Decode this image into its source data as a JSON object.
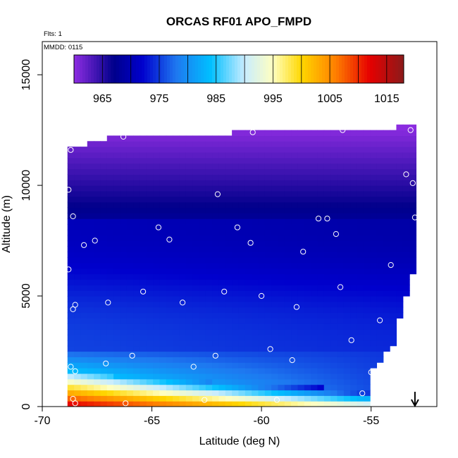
{
  "chart_data": {
    "type": "heatmap",
    "title": "ORCAS RF01 APO_FMPD",
    "subtitle_flights": "Flts: 1",
    "subtitle_date": "MMDD: 0115",
    "xlabel": "Latitude (deg N)",
    "ylabel": "Altitude (m)",
    "xlim": [
      -70,
      -52
    ],
    "ylim": [
      0,
      16500
    ],
    "x_ticks": [
      -70,
      -65,
      -60,
      -55
    ],
    "x_tick_labels": [
      "-70",
      "-65",
      "-60",
      "-55"
    ],
    "y_ticks": [
      0,
      5000,
      10000,
      15000
    ],
    "y_tick_labels": [
      "0",
      "5000",
      "10000",
      "15000"
    ],
    "colorbar": {
      "range": [
        960,
        1018
      ],
      "ticks": [
        965,
        975,
        985,
        995,
        1005,
        1015
      ],
      "tick_labels": [
        "965",
        "975",
        "985",
        "995",
        "1005",
        "1015"
      ],
      "breaks": [
        965,
        970,
        975,
        980,
        985,
        990,
        995,
        1000,
        1005,
        1010,
        1015
      ],
      "colors": [
        "#8e2de2",
        "#00008b",
        "#0000cd",
        "#1e78f0",
        "#00bfff",
        "#c8ecff",
        "#ffffc0",
        "#ffd700",
        "#ff7f00",
        "#e60000",
        "#8b1a1a"
      ],
      "color_values": [
        960,
        967,
        972,
        978,
        984,
        990,
        995,
        1000,
        1006,
        1012,
        1018
      ]
    },
    "field": {
      "lat_start": -68.85,
      "lat_end": -53.0,
      "top_altitude": [
        [
          -68.85,
          11600
        ],
        [
          -67.0,
          12150
        ],
        [
          -66.0,
          12200
        ],
        [
          -65.0,
          12200
        ],
        [
          -60.0,
          12450
        ],
        [
          -55.0,
          12500
        ],
        [
          -53.3,
          12700
        ],
        [
          -53.0,
          12700
        ]
      ],
      "bottom_profile": [
        [
          -68.85,
          0
        ],
        [
          -55.2,
          0
        ],
        [
          -55.0,
          1500
        ],
        [
          -54.0,
          2800
        ],
        [
          -53.0,
          6400
        ]
      ],
      "surface_layer_top": [
        [
          -68.85,
          1500
        ],
        [
          -60.0,
          1000
        ],
        [
          -55.5,
          800
        ]
      ]
    },
    "observations": [
      [
        -68.7,
        11600
      ],
      [
        -66.3,
        12200
      ],
      [
        -60.4,
        12400
      ],
      [
        -56.3,
        12500
      ],
      [
        -53.2,
        12500
      ],
      [
        -68.8,
        9800
      ],
      [
        -62.0,
        9600
      ],
      [
        -53.4,
        10500
      ],
      [
        -53.1,
        10100
      ],
      [
        -68.6,
        8600
      ],
      [
        -64.7,
        8100
      ],
      [
        -61.1,
        8100
      ],
      [
        -57.4,
        8500
      ],
      [
        -57.0,
        8500
      ],
      [
        -53.0,
        8550
      ],
      [
        -52.8,
        8550
      ],
      [
        -68.1,
        7300
      ],
      [
        -67.6,
        7500
      ],
      [
        -64.2,
        7550
      ],
      [
        -60.5,
        7400
      ],
      [
        -56.6,
        7800
      ],
      [
        -58.1,
        7000
      ],
      [
        -68.8,
        6200
      ],
      [
        -54.1,
        6400
      ],
      [
        -65.4,
        5200
      ],
      [
        -61.7,
        5200
      ],
      [
        -60.0,
        5000
      ],
      [
        -56.4,
        5400
      ],
      [
        -68.5,
        4600
      ],
      [
        -68.6,
        4400
      ],
      [
        -67.0,
        4700
      ],
      [
        -63.6,
        4700
      ],
      [
        -58.4,
        4500
      ],
      [
        -54.6,
        3900
      ],
      [
        -55.9,
        3000
      ],
      [
        -59.6,
        2600
      ],
      [
        -68.7,
        1800
      ],
      [
        -68.5,
        1600
      ],
      [
        -67.1,
        1950
      ],
      [
        -65.9,
        2300
      ],
      [
        -63.1,
        1800
      ],
      [
        -62.1,
        2300
      ],
      [
        -58.6,
        2100
      ],
      [
        -55.0,
        1550
      ],
      [
        -55.4,
        600
      ],
      [
        -68.6,
        350
      ],
      [
        -68.5,
        150
      ],
      [
        -66.2,
        150
      ],
      [
        -62.6,
        300
      ],
      [
        -59.3,
        300
      ]
    ],
    "arrow_marker": {
      "latitude": -53.0,
      "direction": "down"
    }
  }
}
